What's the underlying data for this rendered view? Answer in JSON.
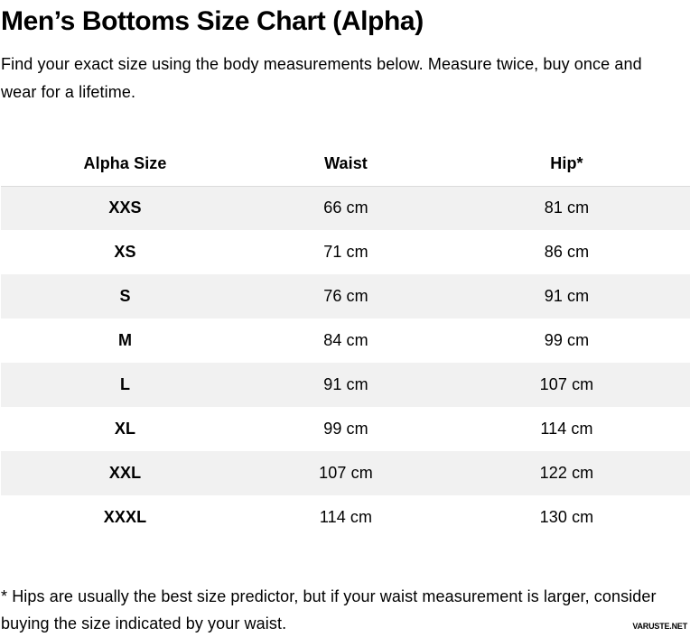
{
  "page": {
    "title": "Men’s Bottoms Size Chart (Alpha)",
    "subtitle": "Find your exact size using the body measurements below. Measure twice, buy once and wear for a lifetime.",
    "footnote": "* Hips are usually the best size predictor, but if your waist measurement is larger, consider buying the size indicated by your waist.",
    "watermark": "VARUSTE.NET"
  },
  "table": {
    "columns": [
      "Alpha Size",
      "Waist",
      "Hip*"
    ],
    "rows": [
      {
        "size": "XXS",
        "waist": "66 cm",
        "hip": "81 cm"
      },
      {
        "size": "XS",
        "waist": "71 cm",
        "hip": "86 cm"
      },
      {
        "size": "S",
        "waist": "76 cm",
        "hip": "91 cm"
      },
      {
        "size": "M",
        "waist": "84 cm",
        "hip": "99 cm"
      },
      {
        "size": "L",
        "waist": "91 cm",
        "hip": "107 cm"
      },
      {
        "size": "XL",
        "waist": "99 cm",
        "hip": "114 cm"
      },
      {
        "size": "XXL",
        "waist": "107 cm",
        "hip": "122 cm"
      },
      {
        "size": "XXXL",
        "waist": "114 cm",
        "hip": "130 cm"
      }
    ]
  },
  "colors": {
    "row_stripe": "#f1f1f1",
    "row_top_border": "#dadada",
    "text": "#000000",
    "background": "#ffffff"
  }
}
